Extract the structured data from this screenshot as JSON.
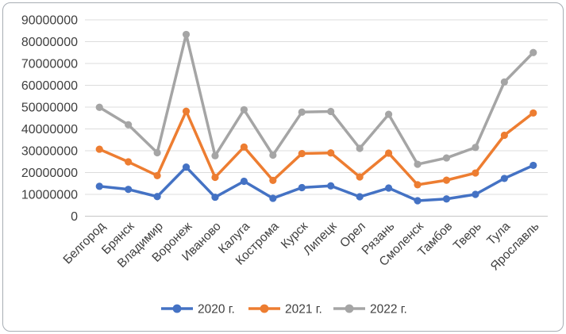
{
  "chart_data": {
    "type": "line",
    "title": "",
    "xlabel": "",
    "ylabel": "",
    "categories": [
      "Белгород",
      "Брянск",
      "Владимир",
      "Воронеж",
      "Иваново",
      "Калуга",
      "Кострома",
      "Курск",
      "Липецк",
      "Орел",
      "Рязань",
      "Смоленск",
      "Тамбов",
      "Тверь",
      "Тула",
      "Ярославль"
    ],
    "series": [
      {
        "name": "2020 г.",
        "color": "#4472C4",
        "values": [
          13700000,
          12300000,
          9000000,
          22500000,
          8700000,
          16000000,
          8200000,
          13100000,
          13900000,
          8900000,
          12900000,
          7100000,
          7900000,
          10000000,
          17300000,
          23300000
        ]
      },
      {
        "name": "2021 г.",
        "color": "#ED7D31",
        "values": [
          30700000,
          24900000,
          18600000,
          48100000,
          17800000,
          31700000,
          16400000,
          28700000,
          29000000,
          18000000,
          28900000,
          14400000,
          16500000,
          19800000,
          37100000,
          47300000
        ]
      },
      {
        "name": "2022 г.",
        "color": "#A5A5A5",
        "values": [
          49900000,
          41900000,
          29100000,
          83300000,
          27700000,
          48800000,
          28000000,
          47700000,
          48000000,
          31100000,
          46700000,
          23800000,
          26700000,
          31500000,
          61500000,
          75000000
        ]
      }
    ],
    "y_axis": {
      "min": 0,
      "max": 90000000,
      "step": 10000000,
      "tick_labels": [
        "0",
        "10000000",
        "20000000",
        "30000000",
        "40000000",
        "50000000",
        "60000000",
        "70000000",
        "80000000",
        "90000000"
      ]
    },
    "legend": {
      "position": "bottom",
      "labels": [
        "2020 г.",
        "2021 г.",
        "2022 г."
      ]
    },
    "grid": true,
    "style": {
      "gridline_color": "#DCDCDC",
      "zero_line_color": "#C6C6C6",
      "axis_text_color": "#3F3F3F",
      "frame_border_color": "#A7ADB4",
      "background": "#FFFFFF"
    }
  }
}
